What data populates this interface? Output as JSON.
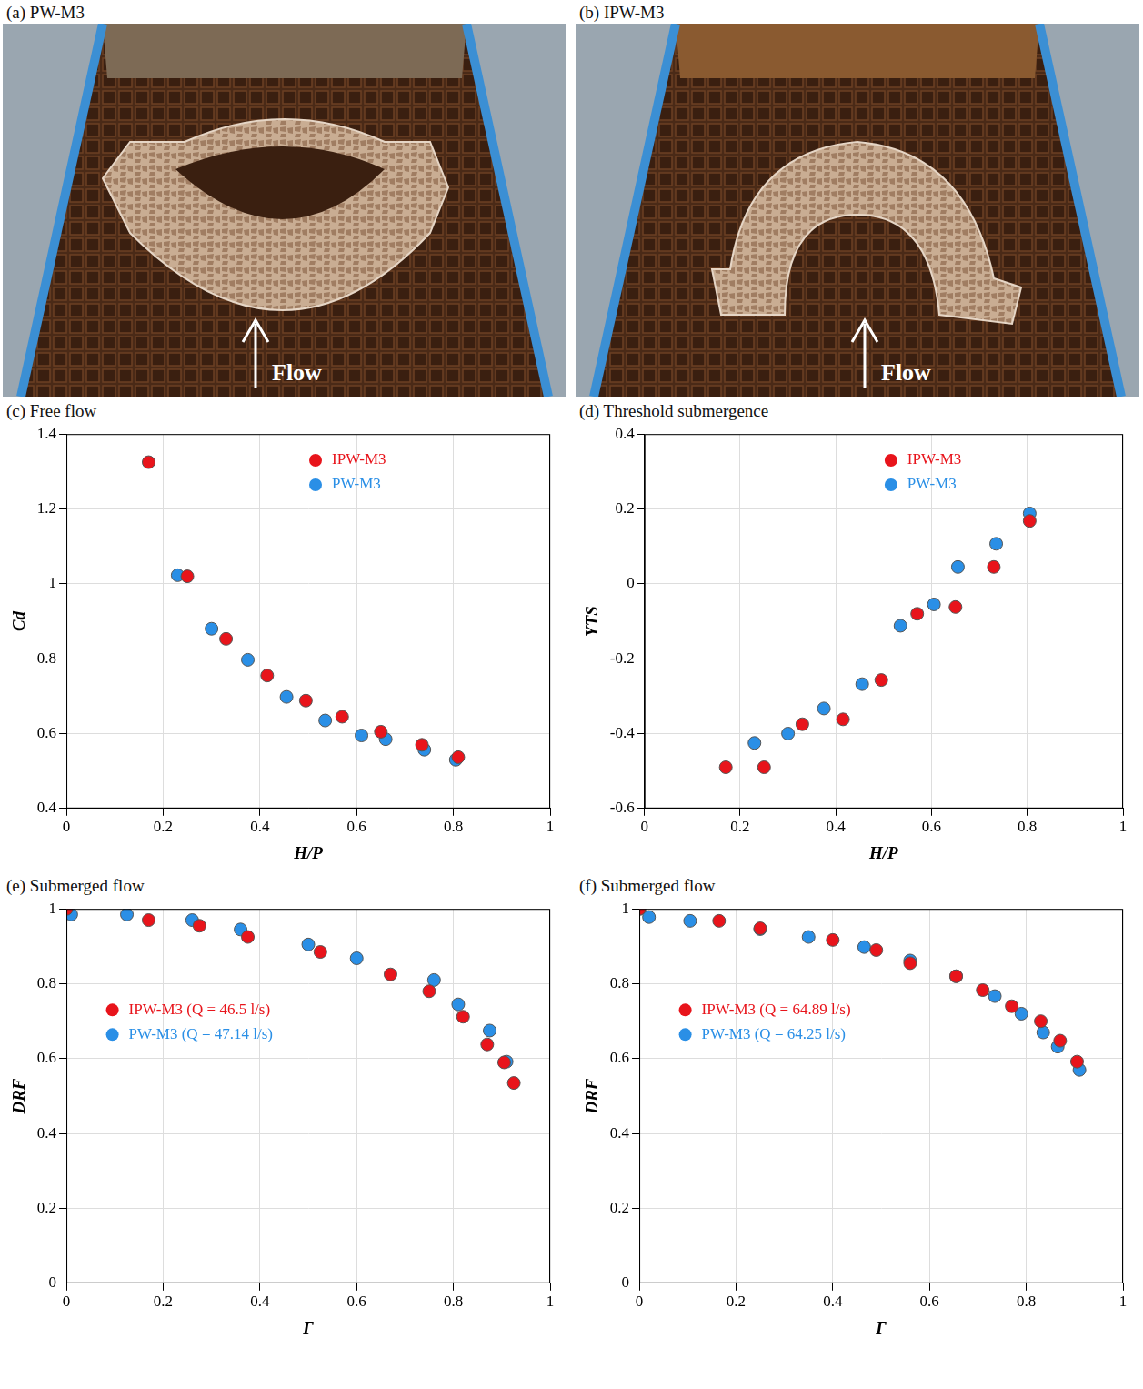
{
  "photos": [
    {
      "panel": "(a)",
      "title": "PW-M3",
      "annotation": "Flow"
    },
    {
      "panel": "(b)",
      "title": "IPW-M3",
      "annotation": "Flow"
    }
  ],
  "chart_data": [
    {
      "type": "scatter",
      "panel": "(c)",
      "title": "Free flow",
      "x_label": "H/P",
      "y_label": "Cd",
      "xlim": [
        0,
        1
      ],
      "xticks": [
        0,
        0.2,
        0.4,
        0.6,
        0.8,
        1
      ],
      "ylim": [
        0.4,
        1.4
      ],
      "yticks": [
        0.4,
        0.6,
        0.8,
        1,
        1.2,
        1.4
      ],
      "grid": true,
      "legend": "upper center",
      "series": [
        {
          "name": "IPW-M3",
          "color": "#e8141b",
          "marker": "circle",
          "x": [
            0.17,
            0.25,
            0.33,
            0.415,
            0.495,
            0.57,
            0.65,
            0.735,
            0.81
          ],
          "values": [
            1.325,
            1.02,
            0.853,
            0.755,
            0.688,
            0.645,
            0.605,
            0.57,
            0.537
          ]
        },
        {
          "name": "PW-M3",
          "color": "#2a8fe6",
          "marker": "circle",
          "x": [
            0.23,
            0.3,
            0.375,
            0.455,
            0.535,
            0.61,
            0.66,
            0.74,
            0.805
          ],
          "values": [
            1.023,
            0.88,
            0.797,
            0.698,
            0.635,
            0.595,
            0.585,
            0.557,
            0.53
          ]
        }
      ]
    },
    {
      "type": "scatter",
      "panel": "(d)",
      "title": "Threshold submergence",
      "x_label": "H/P",
      "y_label": "YTS",
      "xlim": [
        0,
        1
      ],
      "xticks": [
        0,
        0.2,
        0.4,
        0.6,
        0.8,
        1
      ],
      "ylim": [
        -0.6,
        0.4
      ],
      "yticks": [
        -0.6,
        -0.4,
        -0.2,
        0,
        0.2,
        0.4
      ],
      "grid": true,
      "legend": "upper center",
      "series": [
        {
          "name": "IPW-M3",
          "color": "#e8141b",
          "marker": "circle",
          "x": [
            0.17,
            0.25,
            0.33,
            0.415,
            0.495,
            0.57,
            0.65,
            0.73,
            0.805
          ],
          "values": [
            -0.49,
            -0.49,
            -0.375,
            -0.362,
            -0.257,
            -0.08,
            -0.062,
            0.045,
            0.168
          ]
        },
        {
          "name": "PW-M3",
          "color": "#2a8fe6",
          "marker": "circle",
          "x": [
            0.23,
            0.3,
            0.375,
            0.455,
            0.535,
            0.605,
            0.655,
            0.735,
            0.805
          ],
          "values": [
            -0.425,
            -0.4,
            -0.333,
            -0.268,
            -0.112,
            -0.055,
            0.045,
            0.107,
            0.188
          ]
        }
      ]
    },
    {
      "type": "scatter",
      "panel": "(e)",
      "title": "Submerged flow",
      "x_label": "Γ",
      "y_label": "DRF",
      "xlim": [
        0,
        1
      ],
      "xticks": [
        0,
        0.2,
        0.4,
        0.6,
        0.8,
        1
      ],
      "ylim": [
        0,
        1
      ],
      "yticks": [
        0,
        0.2,
        0.4,
        0.6,
        0.8,
        1
      ],
      "grid": true,
      "legend": "center left",
      "series": [
        {
          "name": "IPW-M3 (Q = 46.5 l/s)",
          "color": "#e8141b",
          "marker": "circle",
          "x": [
            0,
            0.17,
            0.275,
            0.375,
            0.525,
            0.67,
            0.75,
            0.82,
            0.87,
            0.905,
            0.925
          ],
          "values": [
            1.0,
            0.97,
            0.955,
            0.925,
            0.885,
            0.825,
            0.78,
            0.712,
            0.638,
            0.59,
            0.535
          ]
        },
        {
          "name": "PW-M3 (Q = 47.14 l/s)",
          "color": "#2a8fe6",
          "marker": "circle",
          "x": [
            0,
            0.01,
            0.125,
            0.26,
            0.36,
            0.5,
            0.6,
            0.76,
            0.81,
            0.875,
            0.91
          ],
          "values": [
            1.0,
            0.985,
            0.985,
            0.97,
            0.945,
            0.905,
            0.868,
            0.81,
            0.745,
            0.675,
            0.592
          ]
        }
      ]
    },
    {
      "type": "scatter",
      "panel": "(f)",
      "title": "Submerged flow",
      "x_label": "Γ",
      "y_label": "DRF",
      "xlim": [
        0,
        1
      ],
      "xticks": [
        0,
        0.2,
        0.4,
        0.6,
        0.8,
        1
      ],
      "ylim": [
        0,
        1
      ],
      "yticks": [
        0,
        0.2,
        0.4,
        0.6,
        0.8,
        1
      ],
      "grid": true,
      "legend": "center left",
      "series": [
        {
          "name": "IPW-M3 (Q = 64.89 l/s)",
          "color": "#e8141b",
          "marker": "circle",
          "x": [
            0,
            0.165,
            0.25,
            0.4,
            0.49,
            0.56,
            0.655,
            0.71,
            0.77,
            0.83,
            0.87,
            0.905
          ],
          "values": [
            1.0,
            0.968,
            0.948,
            0.917,
            0.89,
            0.855,
            0.82,
            0.783,
            0.74,
            0.7,
            0.648,
            0.592
          ]
        },
        {
          "name": "PW-M3 (Q = 64.25 l/s)",
          "color": "#2a8fe6",
          "marker": "circle",
          "x": [
            0,
            0.02,
            0.105,
            0.25,
            0.35,
            0.465,
            0.56,
            0.655,
            0.735,
            0.79,
            0.835,
            0.865,
            0.91
          ],
          "values": [
            1.0,
            0.978,
            0.968,
            0.946,
            0.925,
            0.898,
            0.862,
            0.82,
            0.767,
            0.72,
            0.67,
            0.632,
            0.57
          ]
        }
      ]
    }
  ]
}
